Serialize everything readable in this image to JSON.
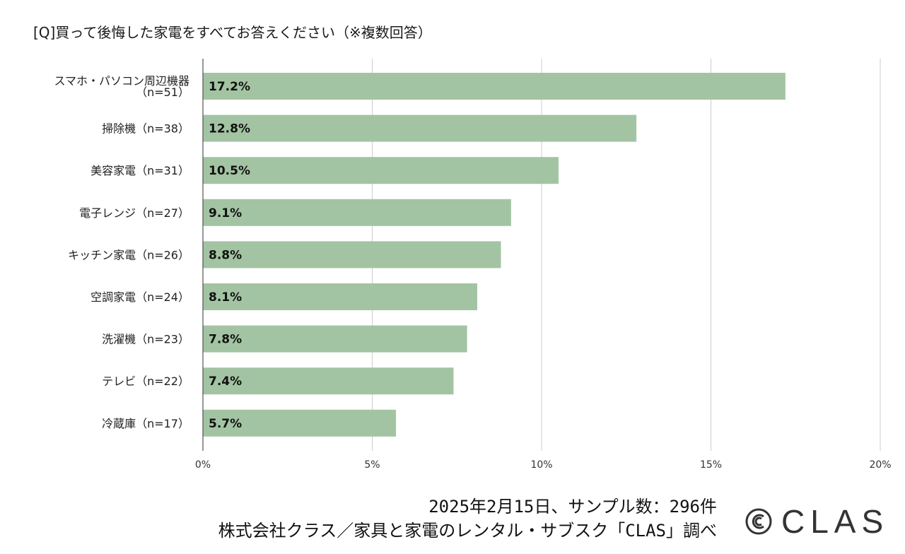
{
  "title": "[Q]買って後悔した家電をすべてお答えください（※複数回答）",
  "chart_data": {
    "type": "bar",
    "orientation": "horizontal",
    "title": "[Q]買って後悔した家電をすべてお答えください（※複数回答）",
    "categories": [
      [
        "スマホ・パソコン周辺機器",
        "（n=51）"
      ],
      [
        "掃除機（n=38）"
      ],
      [
        "美容家電（n=31）"
      ],
      [
        "電子レンジ（n=27）"
      ],
      [
        "キッチン家電（n=26）"
      ],
      [
        "空調家電（n=24）"
      ],
      [
        "洗濯機（n=23）"
      ],
      [
        "テレビ（n=22）"
      ],
      [
        "冷蔵庫（n=17）"
      ]
    ],
    "values": [
      17.2,
      12.8,
      10.5,
      9.1,
      8.8,
      8.1,
      7.8,
      7.4,
      5.7
    ],
    "data_labels": [
      "17.2%",
      "12.8%",
      "10.5%",
      "9.1%",
      "8.8%",
      "8.1%",
      "7.8%",
      "7.4%",
      "5.7%"
    ],
    "xlim": [
      0,
      20
    ],
    "x_ticks": [
      0,
      5,
      10,
      15,
      20
    ],
    "x_tick_labels": [
      "0%",
      "5%",
      "10%",
      "15%",
      "20%"
    ],
    "grid": true,
    "bar_color": "#a3c4a3"
  },
  "footer": {
    "line1": "2025年2月15日、サンプル数：296件",
    "line2": "株式会社クラス／家具と家電のレンタル・サブスク「CLAS」調べ"
  },
  "brand": {
    "name": "CLAS",
    "icon": "clas-logo-icon"
  }
}
